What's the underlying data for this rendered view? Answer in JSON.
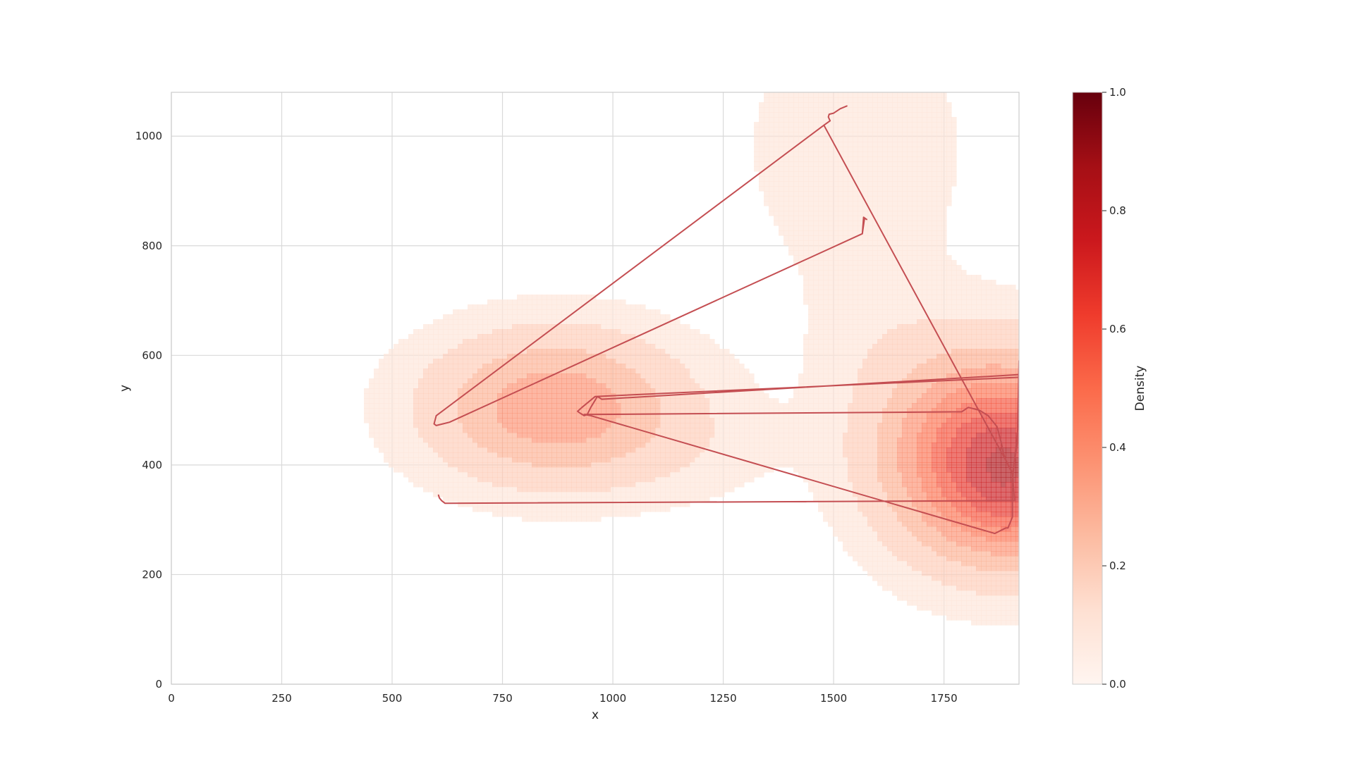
{
  "chart_data": {
    "type": "heatmap",
    "title": "",
    "xlabel": "x",
    "ylabel": "y",
    "xlim": [
      0,
      1920
    ],
    "ylim": [
      0,
      1080
    ],
    "grid": true,
    "x_ticks": [
      0,
      250,
      500,
      750,
      1000,
      1250,
      1500,
      1750
    ],
    "y_ticks": [
      0,
      200,
      400,
      600,
      800,
      1000
    ],
    "density_colormap": "Reds",
    "density_kernels": [
      {
        "x": 870,
        "y": 505,
        "sx": 200,
        "sy": 95,
        "w": 0.42
      },
      {
        "x": 1870,
        "y": 415,
        "sx": 170,
        "sy": 125,
        "w": 0.78
      },
      {
        "x": 1910,
        "y": 360,
        "sx": 90,
        "sy": 80,
        "w": 0.18
      },
      {
        "x": 1550,
        "y": 980,
        "sx": 170,
        "sy": 160,
        "w": 0.1
      },
      {
        "x": 1600,
        "y": 640,
        "sx": 130,
        "sy": 110,
        "w": 0.05
      },
      {
        "x": 1200,
        "y": 420,
        "sx": 150,
        "sy": 70,
        "w": 0.04
      }
    ],
    "path": {
      "color": "#c44e52",
      "points": [
        [
          1530,
          1055
        ],
        [
          1515,
          1050
        ],
        [
          1500,
          1042
        ],
        [
          1490,
          1040
        ],
        [
          1488,
          1035
        ],
        [
          1492,
          1028
        ],
        [
          1478,
          1020
        ],
        [
          600,
          490
        ],
        [
          595,
          475
        ],
        [
          600,
          472
        ],
        [
          630,
          478
        ],
        [
          1565,
          822
        ],
        [
          1570,
          850
        ],
        [
          1575,
          848
        ],
        [
          1568,
          852
        ],
        [
          1567,
          842
        ],
        [
          1565,
          822
        ],
        [
          630,
          478
        ],
        [
          600,
          472
        ],
        [
          595,
          475
        ],
        [
          600,
          490
        ],
        [
          1478,
          1020
        ],
        [
          1906,
          385
        ],
        [
          1916,
          440
        ],
        [
          1920,
          590
        ],
        [
          1920,
          560
        ],
        [
          960,
          525
        ],
        [
          930,
          505
        ],
        [
          920,
          498
        ],
        [
          925,
          495
        ],
        [
          935,
          490
        ],
        [
          942,
          492
        ],
        [
          950,
          505
        ],
        [
          965,
          525
        ],
        [
          975,
          520
        ],
        [
          1920,
          565
        ],
        [
          1918,
          470
        ],
        [
          1905,
          372
        ],
        [
          1905,
          305
        ],
        [
          1900,
          295
        ],
        [
          1895,
          285
        ],
        [
          1890,
          285
        ],
        [
          1865,
          275
        ],
        [
          950,
          490
        ],
        [
          935,
          492
        ],
        [
          1790,
          497
        ],
        [
          1805,
          505
        ],
        [
          1830,
          500
        ],
        [
          1850,
          490
        ],
        [
          1870,
          470
        ],
        [
          1880,
          440
        ],
        [
          1885,
          420
        ],
        [
          1895,
          400
        ],
        [
          1905,
          385
        ],
        [
          1910,
          335
        ],
        [
          620,
          330
        ],
        [
          612,
          335
        ],
        [
          607,
          340
        ],
        [
          605,
          345
        ]
      ]
    }
  },
  "colorbar": {
    "label": "Density",
    "range": [
      0.0,
      1.0
    ],
    "ticks": [
      "0.0",
      "0.2",
      "0.4",
      "0.6",
      "0.8",
      "1.0"
    ],
    "colors": [
      "#fff5f0",
      "#fee0d2",
      "#fcbba1",
      "#fc9272",
      "#fb6a4a",
      "#ef3b2c",
      "#cb181d",
      "#a50f15",
      "#67000d"
    ]
  }
}
